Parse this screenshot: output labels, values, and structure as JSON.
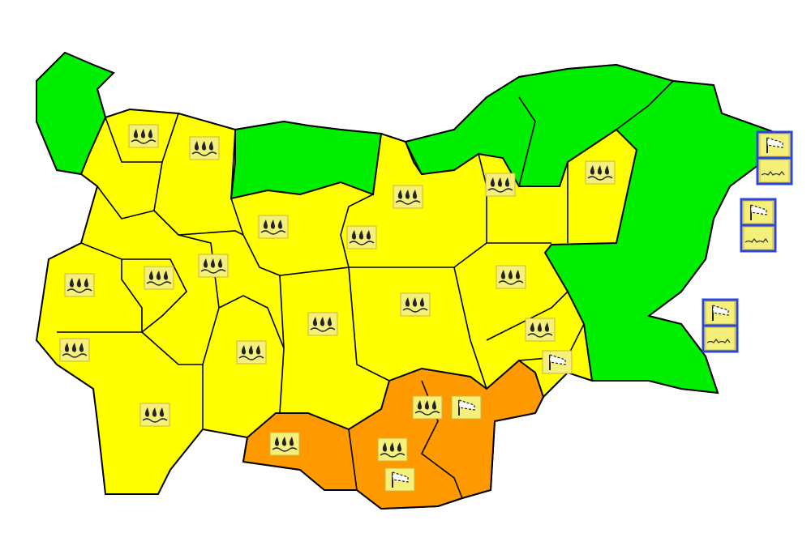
{
  "map": {
    "colors": {
      "background": "#ffffff",
      "no_warning_green": "#00ee00",
      "yellow_warning": "#ffff00",
      "orange_warning": "#ff9900",
      "border": "#000000",
      "icon_bg": "#f5f07a",
      "sea_box_border": "#2a46d8"
    },
    "warning_levels": [
      "green",
      "yellow",
      "orange"
    ],
    "land_icons": [
      "rain",
      "rain",
      "rain",
      "rain",
      "rain",
      "rain",
      "rain",
      "rain",
      "rain",
      "rain",
      "rain",
      "rain",
      "rain",
      "rain",
      "rain",
      "rain",
      "rain",
      "rain",
      "rain",
      "rain",
      "wind",
      "wind",
      "wind"
    ],
    "sea_boxes": [
      {
        "icons": [
          "wind",
          "sea-waves"
        ]
      },
      {
        "icons": [
          "wind",
          "sea-waves"
        ]
      },
      {
        "icons": [
          "wind",
          "sea-waves"
        ]
      }
    ]
  }
}
